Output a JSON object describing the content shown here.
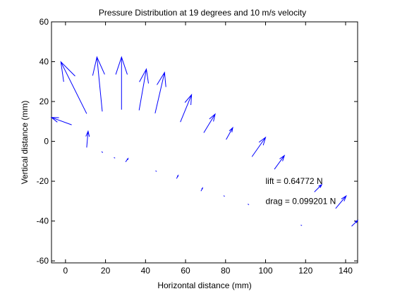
{
  "chart_data": {
    "type": "quiver",
    "title": "Pressure Distribution at 19 degrees and 10 m/s velocity",
    "xlabel": "Horizontal distance (mm)",
    "ylabel": "Vertical distance (mm)",
    "xlim": [
      -7,
      146
    ],
    "ylim": [
      -61,
      60
    ],
    "xticks": [
      0,
      20,
      40,
      60,
      80,
      100,
      120,
      140
    ],
    "yticks": [
      -60,
      -40,
      -20,
      0,
      20,
      40,
      60
    ],
    "grid": false,
    "legend": "none",
    "color": "#0000ff",
    "annotations": [
      {
        "text": "lift = 0.64772 N",
        "x": 100,
        "y": -20
      },
      {
        "text": "drag = 0.099201 N",
        "x": 100,
        "y": -30
      }
    ],
    "arrows": [
      {
        "x0": 3.1,
        "y0": 8.3,
        "x1": -7.0,
        "y1": 12.0
      },
      {
        "x0": 10.6,
        "y0": 13.9,
        "x1": -2.3,
        "y1": 39.9
      },
      {
        "x0": 18.4,
        "y0": 15.0,
        "x1": 15.7,
        "y1": 42.3
      },
      {
        "x0": 28.0,
        "y0": 15.9,
        "x1": 28.0,
        "y1": 42.3
      },
      {
        "x0": 36.8,
        "y0": 15.6,
        "x1": 40.4,
        "y1": 36.3
      },
      {
        "x0": 44.8,
        "y0": 14.1,
        "x1": 49.5,
        "y1": 34.6
      },
      {
        "x0": 57.4,
        "y0": 9.7,
        "x1": 63.0,
        "y1": 23.4
      },
      {
        "x0": 69.1,
        "y0": 4.3,
        "x1": 74.8,
        "y1": 13.7
      },
      {
        "x0": 80.3,
        "y0": 0.9,
        "x1": 83.6,
        "y1": 6.9
      },
      {
        "x0": 93.2,
        "y0": -7.7,
        "x1": 100.0,
        "y1": 2.0
      },
      {
        "x0": 104.4,
        "y0": -14.0,
        "x1": 109.4,
        "y1": -7.1
      },
      {
        "x0": 124.4,
        "y0": -25.4,
        "x1": 128.1,
        "y1": -21.7
      },
      {
        "x0": 135.0,
        "y0": -33.7,
        "x1": 140.3,
        "y1": -27.4
      },
      {
        "x0": 143.0,
        "y0": -42.6,
        "x1": 146.0,
        "y1": -39.7
      },
      {
        "x0": 10.6,
        "y0": -3.1,
        "x1": 11.3,
        "y1": 5.1
      },
      {
        "x0": 18.6,
        "y0": -5.7,
        "x1": 18.1,
        "y1": -5.1
      },
      {
        "x0": 24.8,
        "y0": -8.4,
        "x1": 24.2,
        "y1": -8.1
      },
      {
        "x0": 30.0,
        "y0": -10.3,
        "x1": 31.3,
        "y1": -8.6
      },
      {
        "x0": 45.6,
        "y0": -15.1,
        "x1": 45.0,
        "y1": -14.8
      },
      {
        "x0": 55.5,
        "y0": -18.7,
        "x1": 56.3,
        "y1": -17.1
      },
      {
        "x0": 67.7,
        "y0": -25.0,
        "x1": 68.5,
        "y1": -23.4
      },
      {
        "x0": 79.6,
        "y0": -27.6,
        "x1": 79.0,
        "y1": -27.3
      },
      {
        "x0": 91.7,
        "y0": -31.8,
        "x1": 91.1,
        "y1": -31.5
      },
      {
        "x0": 118.2,
        "y0": -42.3,
        "x1": 117.6,
        "y1": -42.0
      }
    ]
  }
}
